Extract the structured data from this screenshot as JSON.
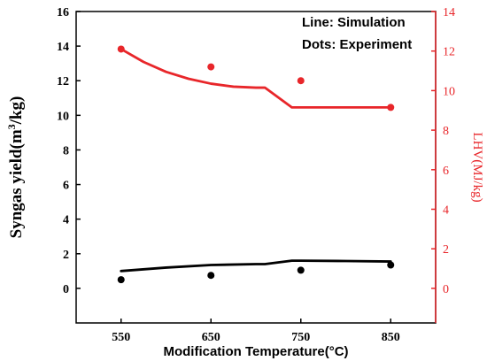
{
  "chart_data": {
    "type": "line",
    "x_axis": {
      "label": "Modification Temperature(°C)",
      "ticks": [
        550,
        650,
        750,
        850
      ],
      "tick_labels": [
        "550",
        "650",
        "750",
        "850"
      ],
      "range": [
        500,
        900
      ]
    },
    "y_left": {
      "label_main": "Syngas yield(m",
      "label_sup": "3",
      "label_tail": "/kg)",
      "range": [
        -2,
        16
      ],
      "ticks": [
        0,
        2,
        4,
        6,
        8,
        10,
        12,
        14,
        16
      ],
      "tick_labels": [
        "0",
        "2",
        "4",
        "6",
        "8",
        "10",
        "12",
        "14",
        "16"
      ],
      "color": "#000000"
    },
    "y_right": {
      "label": "LHV(MJ/kg)",
      "range": [
        -1.75,
        14
      ],
      "ticks": [
        0,
        2,
        4,
        6,
        8,
        10,
        12,
        14
      ],
      "tick_labels": [
        "0",
        "2",
        "4",
        "6",
        "8",
        "10",
        "12",
        "14"
      ],
      "color": "#e8262a"
    },
    "legend_lines": [
      "Line: Simulation",
      "Dots: Experiment"
    ],
    "legend_placement": "top-right",
    "series": [
      {
        "axis": "left",
        "style": "line",
        "color": "#000000",
        "x": [
          550,
          600,
          650,
          700,
          710,
          740,
          750,
          800,
          850
        ],
        "y": [
          1.0,
          1.2,
          1.35,
          1.4,
          1.4,
          1.6,
          1.6,
          1.58,
          1.55
        ]
      },
      {
        "axis": "left",
        "style": "dots",
        "color": "#000000",
        "x": [
          550,
          650,
          750,
          850
        ],
        "y": [
          0.5,
          0.75,
          1.05,
          1.35
        ]
      },
      {
        "axis": "right",
        "style": "line",
        "color": "#e8262a",
        "x": [
          550,
          575,
          600,
          625,
          650,
          675,
          700,
          710,
          740,
          750,
          800,
          850
        ],
        "y": [
          12.1,
          11.45,
          10.95,
          10.6,
          10.35,
          10.2,
          10.15,
          10.15,
          9.15,
          9.15,
          9.15,
          9.15
        ]
      },
      {
        "axis": "right",
        "style": "dots",
        "color": "#e8262a",
        "x": [
          550,
          650,
          750,
          850
        ],
        "y": [
          12.1,
          11.2,
          10.5,
          9.15
        ]
      }
    ]
  }
}
